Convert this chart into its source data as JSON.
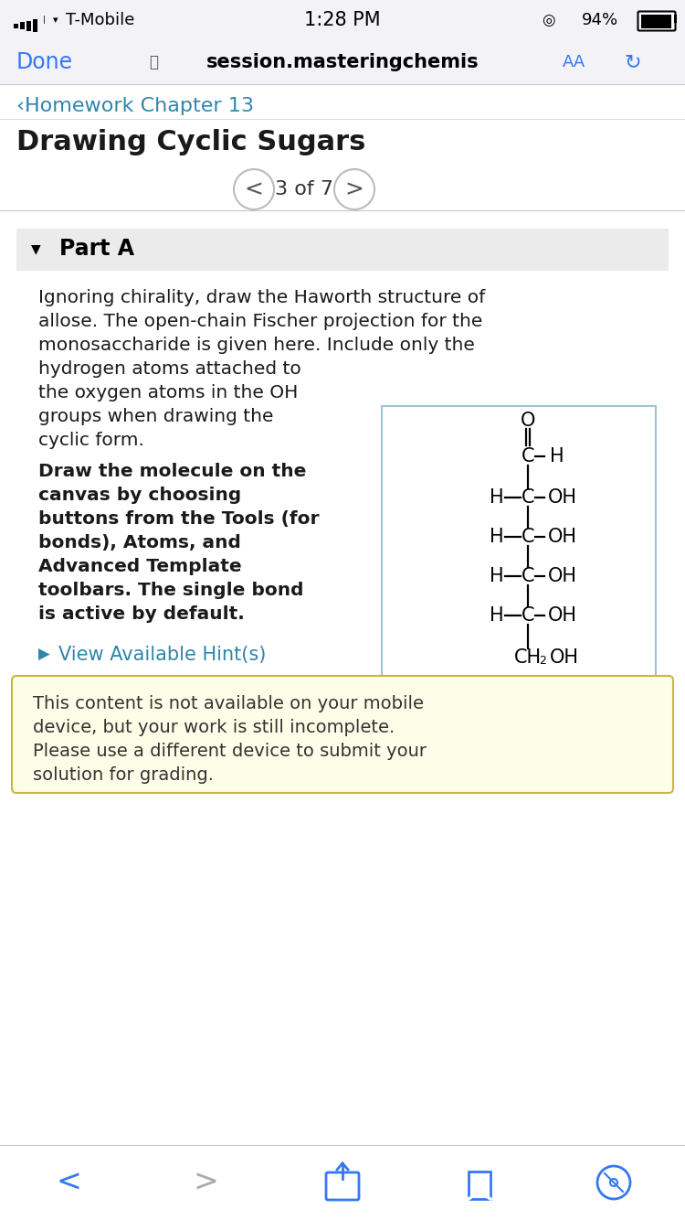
{
  "bg_color": "#f2f2f7",
  "white": "#ffffff",
  "status_time": "1:28 PM",
  "status_carrier": "T-Mobile",
  "status_battery": "94%",
  "nav_done": "Done",
  "nav_url": "session.masteringchemis",
  "nav_aa": "AA",
  "nav_done_color": "#3478f6",
  "nav_aa_color": "#3478f6",
  "nav_refresh_color": "#3478f6",
  "breadcrumb": "‹Homework Chapter 13",
  "breadcrumb_color": "#2e86ab",
  "page_title": "Drawing Cyclic Sugars",
  "page_nav": "3 of 7",
  "part_header": "Part A",
  "main_text_lines_full": [
    "Ignoring chirality, draw the Haworth structure of",
    "allose. The open-chain Fischer projection for the",
    "monosaccharide is given here. Include only the"
  ],
  "main_text_lines_left": [
    "hydrogen atoms attached to",
    "the oxygen atoms in the OH",
    "groups when drawing the",
    "cyclic form."
  ],
  "bold_text_lines": [
    "Draw the molecule on the",
    "canvas by choosing",
    "buttons from the Tools (for",
    "bonds), Atoms, and",
    "Advanced Template",
    "toolbars. The single bond",
    "is active by default."
  ],
  "hint_text": "View Available Hint(s)",
  "hint_color": "#2e86ab",
  "warning_text": [
    "This content is not available on your mobile",
    "device, but your work is still incomplete.",
    "Please use a different device to submit your",
    "solution for grading."
  ],
  "warning_bg": "#fefee8",
  "warning_border": "#c8b840",
  "separator_color": "#c8c8cc",
  "bottom_nav_color": "#3478f6",
  "bottom_nav_gray": "#aaaaaa",
  "text_color": "#1a1a1a",
  "text_fontsize": 14.5,
  "bold_fontsize": 14.5
}
